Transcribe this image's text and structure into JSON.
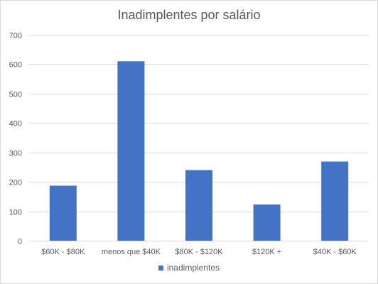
{
  "chart_data": {
    "type": "bar",
    "title": "Inadimplentes por salário",
    "xlabel": "",
    "ylabel": "",
    "categories": [
      "$60K - $80K",
      "menos que $40K",
      "$80K - $120K",
      "$120K +",
      "$40K - $60K"
    ],
    "series": [
      {
        "name": "inadimplentes",
        "values": [
          187,
          610,
          240,
          123,
          269
        ]
      }
    ],
    "ylim": [
      0,
      700
    ],
    "yticks": [
      0,
      100,
      200,
      300,
      400,
      500,
      600,
      700
    ],
    "grid": true,
    "legend": "bottom",
    "colors": {
      "bar": "#4472c4",
      "grid": "#d9d9d9",
      "text": "#595959"
    }
  }
}
